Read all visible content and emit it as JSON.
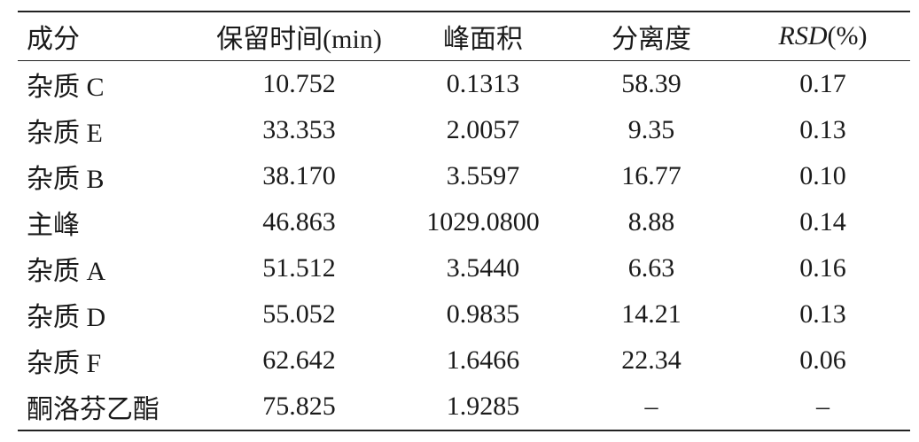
{
  "table": {
    "headers": {
      "component": "成分",
      "retention_time": "保留时间(min)",
      "peak_area": "峰面积",
      "resolution": "分离度",
      "rsd_prefix": "RSD",
      "rsd_suffix": "(%)"
    },
    "rows": [
      {
        "component": "杂质 C",
        "retention_time": "10.752",
        "peak_area": "0.1313",
        "resolution": "58.39",
        "rsd": "0.17"
      },
      {
        "component": "杂质 E",
        "retention_time": "33.353",
        "peak_area": "2.0057",
        "resolution": "9.35",
        "rsd": "0.13"
      },
      {
        "component": "杂质 B",
        "retention_time": "38.170",
        "peak_area": "3.5597",
        "resolution": "16.77",
        "rsd": "0.10"
      },
      {
        "component": "主峰",
        "retention_time": "46.863",
        "peak_area": "1029.0800",
        "resolution": "8.88",
        "rsd": "0.14"
      },
      {
        "component": "杂质 A",
        "retention_time": "51.512",
        "peak_area": "3.5440",
        "resolution": "6.63",
        "rsd": "0.16"
      },
      {
        "component": "杂质 D",
        "retention_time": "55.052",
        "peak_area": "0.9835",
        "resolution": "14.21",
        "rsd": "0.13"
      },
      {
        "component": "杂质 F",
        "retention_time": "62.642",
        "peak_area": "1.6466",
        "resolution": "22.34",
        "rsd": "0.06"
      },
      {
        "component": "酮洛芬乙酯",
        "retention_time": "75.825",
        "peak_area": "1.9285",
        "resolution": "–",
        "rsd": "–"
      }
    ]
  }
}
